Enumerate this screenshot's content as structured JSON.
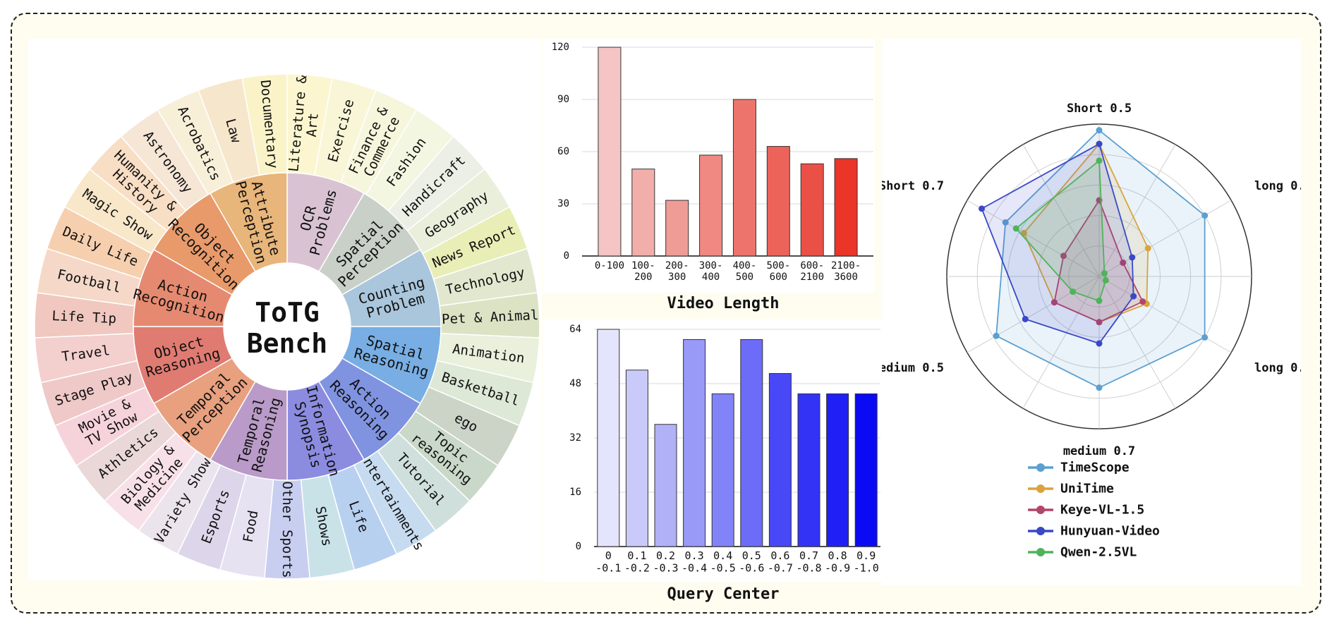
{
  "sunburst": {
    "center_title": [
      "ToTG",
      "Bench"
    ],
    "inner": [
      {
        "label": "OCR\nProblems",
        "color": "#d9c3d3"
      },
      {
        "label": "Spatial\nPerception",
        "color": "#c8d0c8"
      },
      {
        "label": "Counting\nProblem",
        "color": "#a9c6dc"
      },
      {
        "label": "Spatial\nReasoning",
        "color": "#78aee4"
      },
      {
        "label": "Action\nReasoning",
        "color": "#7f93e0"
      },
      {
        "label": "Information\nSynopsis",
        "color": "#8b8ce0"
      },
      {
        "label": "Temporal\nReasoning",
        "color": "#b99ac8"
      },
      {
        "label": "Temporal\nPerception",
        "color": "#e8a07e"
      },
      {
        "label": "Object\nReasoning",
        "color": "#e07b72"
      },
      {
        "label": "Action\nRecognition",
        "color": "#e58a70"
      },
      {
        "label": "Object\nRecognition",
        "color": "#e89a6a"
      },
      {
        "label": "Attribute\nPerception",
        "color": "#e8b57a"
      }
    ],
    "outer": [
      {
        "label": "Literature &\nArt",
        "color": "#fbf6cf"
      },
      {
        "label": "Exercise",
        "color": "#f8f6d6"
      },
      {
        "label": "Finance &\nCommerce",
        "color": "#f6f6dc"
      },
      {
        "label": "Fashion",
        "color": "#f3f6e0"
      },
      {
        "label": "Handicraft",
        "color": "#ecefe6"
      },
      {
        "label": "Geography",
        "color": "#eaefdc"
      },
      {
        "label": "News Report",
        "color": "#e9eeb6"
      },
      {
        "label": "Technology",
        "color": "#e2e8cf"
      },
      {
        "label": "Pet & Animal",
        "color": "#dbe3c4"
      },
      {
        "label": "Animation",
        "color": "#e9f0dc"
      },
      {
        "label": "Basketball",
        "color": "#dde8d6"
      },
      {
        "label": "ego",
        "color": "#ccd4c8"
      },
      {
        "label": "Topic\nreasoning",
        "color": "#c9d8c8"
      },
      {
        "label": "Tutorial",
        "color": "#cfe0dc"
      },
      {
        "label": "Entertainments",
        "color": "#c6dbef"
      },
      {
        "label": "Life",
        "color": "#b8d0f0"
      },
      {
        "label": "Shows",
        "color": "#c8e2e8"
      },
      {
        "label": "Other Sports",
        "color": "#c8cef0"
      },
      {
        "label": "Food",
        "color": "#e6e2f2"
      },
      {
        "label": "Esports",
        "color": "#ddd6ea"
      },
      {
        "label": "Variety Show",
        "color": "#ece4ec"
      },
      {
        "label": "Biology &\nMedicine",
        "color": "#f8e0e8"
      },
      {
        "label": "Athletics",
        "color": "#ead8d8"
      },
      {
        "label": "Movie &\nTV Show",
        "color": "#f6d3da"
      },
      {
        "label": "Stage Play",
        "color": "#efc8c8"
      },
      {
        "label": "Travel",
        "color": "#f3cfcd"
      },
      {
        "label": "Life Tip",
        "color": "#f0c8c0"
      },
      {
        "label": "Football",
        "color": "#f5d8c8"
      },
      {
        "label": "Daily Life",
        "color": "#f6cfae"
      },
      {
        "label": "Magic Show",
        "color": "#f8e7c9"
      },
      {
        "label": "Humanity &\nHistory",
        "color": "#f7dec4"
      },
      {
        "label": "Astronomy",
        "color": "#f6e6d6"
      },
      {
        "label": "Acrobatics",
        "color": "#f8efd8"
      },
      {
        "label": "Law",
        "color": "#f6e6cc"
      },
      {
        "label": "Documentary",
        "color": "#fbf3c8"
      }
    ]
  },
  "chart_data": [
    {
      "type": "bar",
      "title": "Video Length",
      "categories": [
        "0-100",
        "100-\n200",
        "200-\n300",
        "300-\n400",
        "400-\n500",
        "500-\n600",
        "600-\n2100",
        "2100-\n3600"
      ],
      "values": [
        120,
        50,
        32,
        58,
        90,
        63,
        53,
        56
      ],
      "ylim": [
        0,
        120
      ],
      "yticks": [
        0,
        30,
        60,
        90,
        120
      ],
      "grid": true,
      "colors": [
        "#f5c4c4",
        "#f2aeab",
        "#f09c96",
        "#ef8982",
        "#ed746c",
        "#ec635a",
        "#eb5046",
        "#ea3528"
      ]
    },
    {
      "type": "bar",
      "title": "Query Center",
      "categories": [
        "0\n-0.1",
        "0.1\n-0.2",
        "0.2\n-0.3",
        "0.3\n-0.4",
        "0.4\n-0.5",
        "0.5\n-0.6",
        "0.6\n-0.7",
        "0.7\n-0.8",
        "0.8\n-0.9",
        "0.9\n-1.0"
      ],
      "values": [
        64,
        52,
        36,
        61,
        45,
        61,
        51,
        45,
        45,
        45
      ],
      "ylim": [
        0,
        64
      ],
      "yticks": [
        0,
        16,
        32,
        48,
        64
      ],
      "grid": true,
      "colors": [
        "#e4e4fc",
        "#cacafa",
        "#b1b1f8",
        "#9999f8",
        "#8383f8",
        "#6c6cf8",
        "#4848f6",
        "#3333f6",
        "#2020f5",
        "#0b0bf3"
      ]
    },
    {
      "type": "radar",
      "axes": [
        "Short 0.5",
        "long 0.7",
        "long 0.5",
        "medium 0.7",
        "medium 0.5",
        "Short 0.7"
      ],
      "rmax": 1.0,
      "grid": true,
      "legend_position": "bottom",
      "series": [
        {
          "name": "TimeScope",
          "color": "#5ba0d0",
          "values": [
            0.96,
            0.8,
            0.8,
            0.73,
            0.78,
            0.71
          ]
        },
        {
          "name": "UniTime",
          "color": "#d9a43c",
          "values": [
            0.87,
            0.37,
            0.36,
            0.3,
            0.34,
            0.57
          ]
        },
        {
          "name": "Keye-VL-1.5",
          "color": "#b3446c",
          "values": [
            0.5,
            0.18,
            0.33,
            0.3,
            0.34,
            0.27
          ]
        },
        {
          "name": "Hunyuan-Video",
          "color": "#3a48c6",
          "values": [
            0.87,
            0.25,
            0.26,
            0.44,
            0.56,
            0.89
          ]
        },
        {
          "name": "Qwen-2.5VL",
          "color": "#4fb35a",
          "values": [
            0.76,
            0.04,
            0.05,
            0.16,
            0.2,
            0.63
          ]
        }
      ]
    }
  ]
}
